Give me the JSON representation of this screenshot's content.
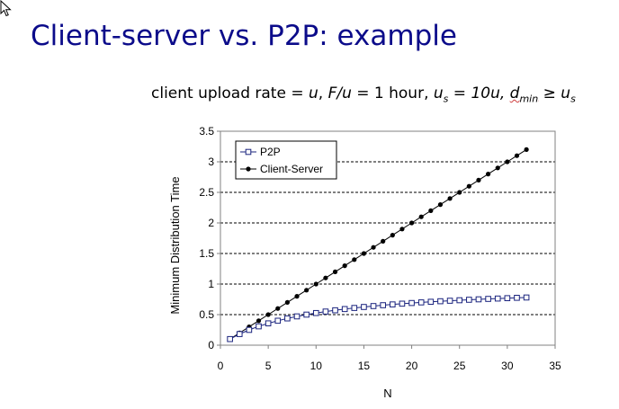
{
  "slide": {
    "title": "Client-server vs. P2P: example",
    "formula": {
      "prefix": "client upload rate = ",
      "u": "u",
      "sep1": ",  ",
      "fu": "F/u",
      "eq_hour": " = 1 hour,  ",
      "us_u": "u",
      "us_sub": "s",
      "us_val": " = 10u,  ",
      "dmin_d": "d",
      "dmin_sub": "min",
      "geq": " ≥ ",
      "rhs_u": "u",
      "rhs_sub": "s"
    }
  },
  "chart_data": {
    "type": "line",
    "xlabel": "N",
    "ylabel": "Minimum Distribution Time",
    "xlim": [
      0,
      35
    ],
    "ylim": [
      0,
      3.5
    ],
    "x_ticks": [
      0,
      5,
      10,
      15,
      20,
      25,
      30,
      35
    ],
    "y_ticks": [
      0,
      0.5,
      1,
      1.5,
      2,
      2.5,
      3,
      3.5
    ],
    "y_tick_labels": [
      "0",
      "0.5",
      "1",
      "1.5",
      "2",
      "2.5",
      "3",
      "3.5"
    ],
    "grid": "horizontal dashed",
    "legend_position": "top-left",
    "x": [
      1,
      2,
      3,
      4,
      5,
      6,
      7,
      8,
      9,
      10,
      11,
      12,
      13,
      14,
      15,
      16,
      17,
      18,
      19,
      20,
      21,
      22,
      23,
      24,
      25,
      26,
      27,
      28,
      29,
      30,
      31,
      32
    ],
    "series": [
      {
        "name": "P2P",
        "marker": "open-square",
        "color": "#1a237e",
        "values": [
          0.1,
          0.182,
          0.25,
          0.308,
          0.357,
          0.4,
          0.438,
          0.471,
          0.5,
          0.526,
          0.55,
          0.571,
          0.591,
          0.609,
          0.625,
          0.64,
          0.654,
          0.667,
          0.679,
          0.69,
          0.7,
          0.71,
          0.719,
          0.727,
          0.735,
          0.743,
          0.75,
          0.757,
          0.763,
          0.769,
          0.775,
          0.78
        ]
      },
      {
        "name": "Client-Server",
        "marker": "filled-circle",
        "color": "#000000",
        "values": [
          0.1,
          0.2,
          0.3,
          0.4,
          0.5,
          0.6,
          0.7,
          0.8,
          0.9,
          1.0,
          1.1,
          1.2,
          1.3,
          1.4,
          1.5,
          1.6,
          1.7,
          1.8,
          1.9,
          2.0,
          2.1,
          2.2,
          2.3,
          2.4,
          2.5,
          2.6,
          2.7,
          2.8,
          2.9,
          3.0,
          3.1,
          3.2
        ]
      }
    ]
  }
}
